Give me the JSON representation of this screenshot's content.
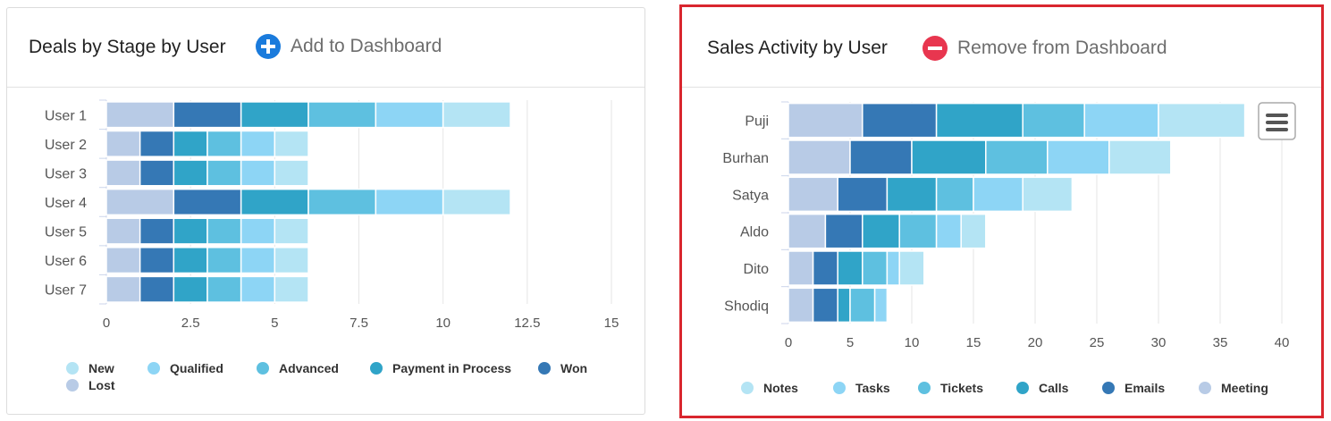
{
  "panels": [
    {
      "title": "Deals by Stage by User",
      "action_label": "Add to Dashboard",
      "action_icon": "plus-circle-icon",
      "action_color": "#1a7bdc"
    },
    {
      "title": "Sales Activity by User",
      "action_label": "Remove from Dashboard",
      "action_icon": "minus-circle-icon",
      "action_color": "#e8364f",
      "menu_icon": "hamburger-menu-icon"
    }
  ],
  "chart_data": [
    {
      "type": "bar",
      "orientation": "horizontal",
      "stacked": true,
      "categories": [
        "User 1",
        "User 2",
        "User 3",
        "User 4",
        "User 5",
        "User 6",
        "User 7"
      ],
      "series": [
        {
          "name": "Lost",
          "color": "#b8cbe6",
          "values": [
            2,
            1,
            1,
            2,
            1,
            1,
            1
          ]
        },
        {
          "name": "Won",
          "color": "#3578b5",
          "values": [
            2,
            1,
            1,
            2,
            1,
            1,
            1
          ]
        },
        {
          "name": "Payment in Process",
          "color": "#30a4c8",
          "values": [
            2,
            1,
            1,
            2,
            1,
            1,
            1
          ]
        },
        {
          "name": "Advanced",
          "color": "#5ec0e0",
          "values": [
            2,
            1,
            1,
            2,
            1,
            1,
            1
          ]
        },
        {
          "name": "Qualified",
          "color": "#8dd5f5",
          "values": [
            2,
            1,
            1,
            2,
            1,
            1,
            1
          ]
        },
        {
          "name": "New",
          "color": "#b4e4f4",
          "values": [
            2,
            1,
            1,
            2,
            1,
            1,
            1
          ]
        }
      ],
      "xlim": [
        0,
        15
      ],
      "ticks": [
        "0",
        "2.5",
        "5",
        "7.5",
        "10",
        "12.5",
        "15"
      ],
      "tick_values": [
        0,
        2.5,
        5,
        7.5,
        10,
        12.5,
        15
      ],
      "legend": [
        "New",
        "Qualified",
        "Advanced",
        "Payment in Process",
        "Won",
        "Lost"
      ],
      "legend_position": "bottom"
    },
    {
      "type": "bar",
      "orientation": "horizontal",
      "stacked": true,
      "categories": [
        "Puji",
        "Burhan",
        "Satya",
        "Aldo",
        "Dito",
        "Shodiq"
      ],
      "series": [
        {
          "name": "Meeting",
          "color": "#b8cbe6",
          "values": [
            6,
            5,
            4,
            3,
            2,
            2
          ]
        },
        {
          "name": "Emails",
          "color": "#3578b5",
          "values": [
            6,
            5,
            4,
            3,
            2,
            2
          ]
        },
        {
          "name": "Calls",
          "color": "#30a4c8",
          "values": [
            7,
            6,
            4,
            3,
            2,
            1
          ]
        },
        {
          "name": "Tickets",
          "color": "#5ec0e0",
          "values": [
            5,
            5,
            3,
            3,
            2,
            2
          ]
        },
        {
          "name": "Tasks",
          "color": "#8dd5f5",
          "values": [
            6,
            5,
            4,
            2,
            1,
            1
          ]
        },
        {
          "name": "Notes",
          "color": "#b4e4f4",
          "values": [
            7,
            5,
            4,
            2,
            2,
            0
          ]
        }
      ],
      "xlim": [
        0,
        40
      ],
      "ticks": [
        "0",
        "5",
        "10",
        "15",
        "20",
        "25",
        "30",
        "35",
        "40"
      ],
      "tick_values": [
        0,
        5,
        10,
        15,
        20,
        25,
        30,
        35,
        40
      ],
      "legend": [
        "Notes",
        "Tasks",
        "Tickets",
        "Calls",
        "Emails",
        "Meeting"
      ],
      "legend_position": "bottom"
    }
  ]
}
